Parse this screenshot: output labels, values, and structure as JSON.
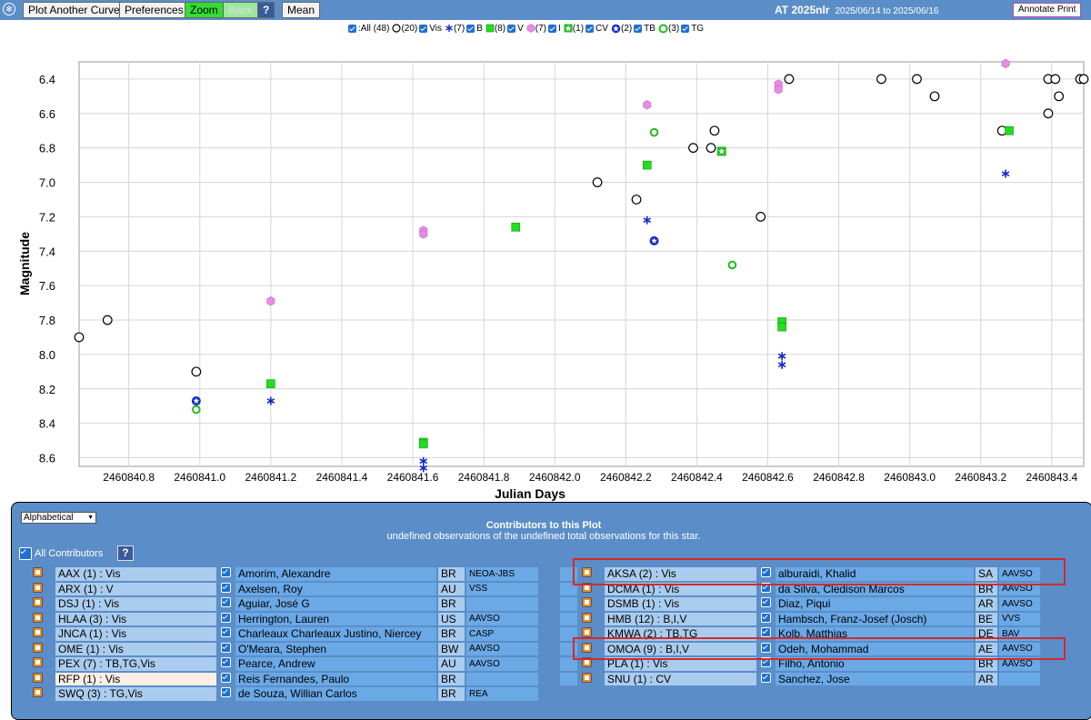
{
  "toolbar": {
    "plot_another": "Plot Another Curve",
    "preferences": "Preferences",
    "zoom": "Zoom",
    "back": "Back",
    "help": "?",
    "mean": "Mean",
    "star": "AT 2025nlr",
    "dates": "2025/06/14 to 2025/06/16",
    "annotate": "Annotate Print"
  },
  "legend": {
    "all": ":All (48)",
    "vis": "(20)",
    "vis_label": "Vis",
    "b": "(7)",
    "b_label": "B",
    "v": "(8)",
    "v_label": "V",
    "i": "(7)",
    "i_label": "I",
    "cv": "(1)",
    "cv_label": "CV",
    "tb": "(2)",
    "tb_label": "TB",
    "tg": "(3)",
    "tg_label": "TG"
  },
  "chart_data": {
    "type": "scatter",
    "xlabel": "Julian Days",
    "ylabel": "Magnitude",
    "xlim": [
      2460840.66,
      2460843.49
    ],
    "ylim": [
      8.65,
      6.3
    ],
    "y_inverted": true,
    "grid": true,
    "x_ticks": [
      2460840.8,
      2460841.0,
      2460841.2,
      2460841.4,
      2460841.6,
      2460841.8,
      2460842.0,
      2460842.2,
      2460842.4,
      2460842.6,
      2460842.8,
      2460843.0,
      2460843.2,
      2460843.4
    ],
    "x_tick_labels": [
      "2460840.8",
      "2460841.0",
      "2460841.2",
      "2460841.4",
      "2460841.6",
      "2460841.8",
      "2460842.0",
      "2460842.2",
      "2460842.4",
      "2460842.6",
      "2460842.8",
      "2460843.0",
      "2460843.2",
      "2460843.4"
    ],
    "y_ticks": [
      6.4,
      6.6,
      6.8,
      7.0,
      7.2,
      7.4,
      7.6,
      7.8,
      8.0,
      8.2,
      8.4,
      8.6
    ],
    "y_tick_labels": [
      "6.4",
      "6.6",
      "6.8",
      "7.0",
      "7.2",
      "7.4",
      "7.6",
      "7.8",
      "8.0",
      "8.2",
      "8.4",
      "8.6"
    ],
    "series": [
      {
        "name": "Vis",
        "marker": "open-circle",
        "color": "#000000",
        "points": [
          [
            2460840.66,
            7.9
          ],
          [
            2460840.74,
            7.8
          ],
          [
            2460840.99,
            8.1
          ],
          [
            2460842.12,
            7.0
          ],
          [
            2460842.23,
            7.1
          ],
          [
            2460842.39,
            6.8
          ],
          [
            2460842.44,
            6.8
          ],
          [
            2460842.45,
            6.7
          ],
          [
            2460842.58,
            7.2
          ],
          [
            2460842.66,
            6.4
          ],
          [
            2460842.92,
            6.4
          ],
          [
            2460843.02,
            6.4
          ],
          [
            2460843.07,
            6.5
          ],
          [
            2460843.26,
            6.7
          ],
          [
            2460843.39,
            6.4
          ],
          [
            2460843.39,
            6.6
          ],
          [
            2460843.41,
            6.4
          ],
          [
            2460843.42,
            6.5
          ],
          [
            2460843.48,
            6.4
          ],
          [
            2460843.49,
            6.4
          ]
        ]
      },
      {
        "name": "B",
        "marker": "asterisk",
        "color": "#1428c8",
        "points": [
          [
            2460841.2,
            8.27
          ],
          [
            2460841.63,
            8.62
          ],
          [
            2460841.63,
            8.66
          ],
          [
            2460842.26,
            7.22
          ],
          [
            2460842.64,
            8.01
          ],
          [
            2460842.64,
            8.06
          ],
          [
            2460843.27,
            6.95
          ]
        ]
      },
      {
        "name": "V",
        "marker": "square",
        "color": "#22dd22",
        "points": [
          [
            2460841.2,
            8.17
          ],
          [
            2460841.63,
            8.51
          ],
          [
            2460841.63,
            8.52
          ],
          [
            2460841.89,
            7.26
          ],
          [
            2460842.26,
            6.9
          ],
          [
            2460842.64,
            7.81
          ],
          [
            2460842.64,
            7.84
          ],
          [
            2460843.28,
            6.7
          ]
        ]
      },
      {
        "name": "I",
        "marker": "hexagon",
        "color": "#e68ce6",
        "points": [
          [
            2460841.2,
            7.69
          ],
          [
            2460841.63,
            7.28
          ],
          [
            2460841.63,
            7.3
          ],
          [
            2460842.26,
            6.55
          ],
          [
            2460842.63,
            6.43
          ],
          [
            2460842.63,
            6.46
          ],
          [
            2460843.27,
            6.31
          ]
        ]
      },
      {
        "name": "CV",
        "marker": "star-square",
        "color": "#22bb22",
        "points": [
          [
            2460842.47,
            6.82
          ]
        ]
      },
      {
        "name": "TB",
        "marker": "star-circle",
        "color": "#1428c8",
        "points": [
          [
            2460840.99,
            8.27
          ],
          [
            2460842.28,
            7.34
          ]
        ]
      },
      {
        "name": "TG",
        "marker": "ring",
        "color": "#22bb22",
        "points": [
          [
            2460840.99,
            8.32
          ],
          [
            2460842.28,
            6.71
          ],
          [
            2460842.5,
            7.48
          ]
        ]
      }
    ]
  },
  "contributors": {
    "sort_option": "Alphabetical",
    "title": "Contributors to this Plot",
    "subtitle": "undefined observations of the undefined total observations for this star.",
    "all_label": "All Contributors",
    "help": "?",
    "left": [
      {
        "code": "AAX (1) : Vis",
        "name": "Amorim, Alexandre",
        "country": "BR",
        "group": "NEOA-JBS"
      },
      {
        "code": "ARX (1) : V",
        "name": "Axelsen, Roy",
        "country": "AU",
        "group": "VSS"
      },
      {
        "code": "DSJ (1) : Vis",
        "name": "Aguiar, José G",
        "country": "BR",
        "group": ""
      },
      {
        "code": "HLAA (3) : Vis",
        "name": "Herrington, Lauren",
        "country": "US",
        "group": "AAVSO"
      },
      {
        "code": "JNCA (1) : Vis",
        "name": "Charleaux Charleaux Justino, Niercey",
        "country": "BR",
        "group": "CASP"
      },
      {
        "code": "OME (1) : Vis",
        "name": "O'Meara, Stephen",
        "country": "BW",
        "group": "AAVSO"
      },
      {
        "code": "PEX (7) : TB,TG,Vis",
        "name": "Pearce, Andrew",
        "country": "AU",
        "group": "AAVSO"
      },
      {
        "code": "RFP (1) : Vis",
        "name": "Reis Fernandes, Paulo",
        "country": "BR",
        "group": ""
      },
      {
        "code": "SWQ (3) : TG,Vis",
        "name": "de Souza, Willian Carlos",
        "country": "BR",
        "group": "REA"
      }
    ],
    "right": [
      {
        "code": "AKSA (2) : Vis",
        "name": "alburaidi, Khalid",
        "country": "SA",
        "group": "AAVSO"
      },
      {
        "code": "DCMA (1) : Vis",
        "name": "da Silva, Cledison Marcos",
        "country": "BR",
        "group": "AAVSO"
      },
      {
        "code": "DSMB (1) : Vis",
        "name": "Diaz, Piqui",
        "country": "AR",
        "group": "AAVSO"
      },
      {
        "code": "HMB (12) : B,I,V",
        "name": "Hambsch, Franz-Josef (Josch)",
        "country": "BE",
        "group": "VVS"
      },
      {
        "code": "KMWA (2) : TB,TG",
        "name": "Kolb, Matthias",
        "country": "DE",
        "group": "BAV"
      },
      {
        "code": "OMOA (9) : B,I,V",
        "name": "Odeh, Mohammad",
        "country": "AE",
        "group": "AAVSO"
      },
      {
        "code": "PLA (1) : Vis",
        "name": "Filho, Antonio",
        "country": "BR",
        "group": "AAVSO"
      },
      {
        "code": "SNU (1) : CV",
        "name": "Sanchez, Jose",
        "country": "AR",
        "group": ""
      }
    ]
  }
}
